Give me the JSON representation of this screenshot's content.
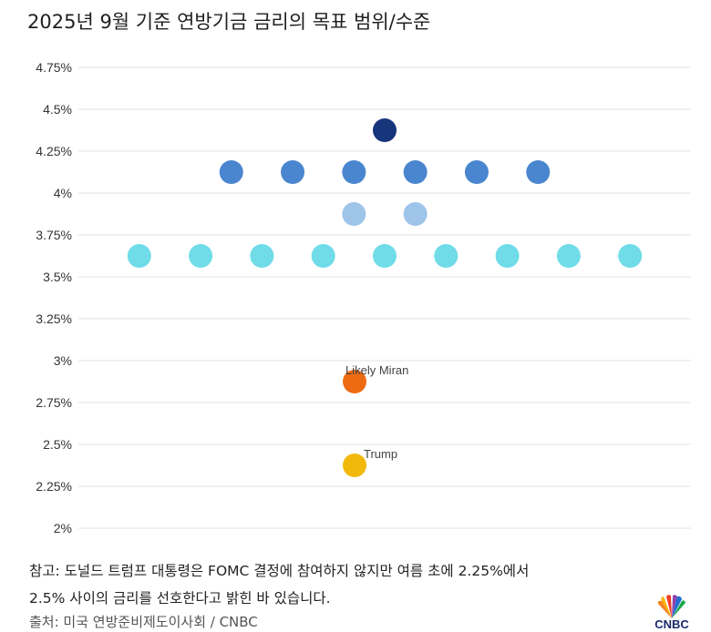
{
  "chart_data": {
    "type": "scatter",
    "title": "2025년 9월 기준 연방기금 금리의 목표 범위/수준",
    "ylim": [
      2,
      4.75
    ],
    "yticks": [
      {
        "value": 4.75,
        "label": "4.75%"
      },
      {
        "value": 4.5,
        "label": "4.5%"
      },
      {
        "value": 4.25,
        "label": "4.25%"
      },
      {
        "value": 4,
        "label": "4%"
      },
      {
        "value": 3.75,
        "label": "3.75%"
      },
      {
        "value": 3.5,
        "label": "3.5%"
      },
      {
        "value": 3.25,
        "label": "3.25%"
      },
      {
        "value": 3,
        "label": "3%"
      },
      {
        "value": 2.75,
        "label": "2.75%"
      },
      {
        "value": 2.5,
        "label": "2.5%"
      },
      {
        "value": 2.25,
        "label": "2.25%"
      },
      {
        "value": 2,
        "label": "2%"
      }
    ],
    "grid": true,
    "dot_rows": [
      {
        "y": 4.375,
        "count": 1,
        "color": "#17357a"
      },
      {
        "y": 4.125,
        "count": 6,
        "color": "#4a86cf"
      },
      {
        "y": 3.875,
        "count": 2,
        "color": "#9ec4ea"
      },
      {
        "y": 3.625,
        "count": 9,
        "color": "#6fdce8"
      }
    ],
    "annotated_points": [
      {
        "label": "Likely Miran",
        "y": 2.875,
        "color": "#ee6a12"
      },
      {
        "label": "Trump",
        "y": 2.375,
        "color": "#f2b90d"
      }
    ]
  },
  "note": {
    "line1": "참고: 도널드 트럼프 대통령은 FOMC 결정에 참여하지 않지만 여름 초에 2.25%에서",
    "line2": "2.5% 사이의 금리를 선호한다고 밝힌 바 있습니다."
  },
  "source": "출처: 미국 연방준비제도이사회 / CNBC",
  "logo": {
    "text": "CNBC",
    "icon": "nbc-peacock-icon"
  }
}
